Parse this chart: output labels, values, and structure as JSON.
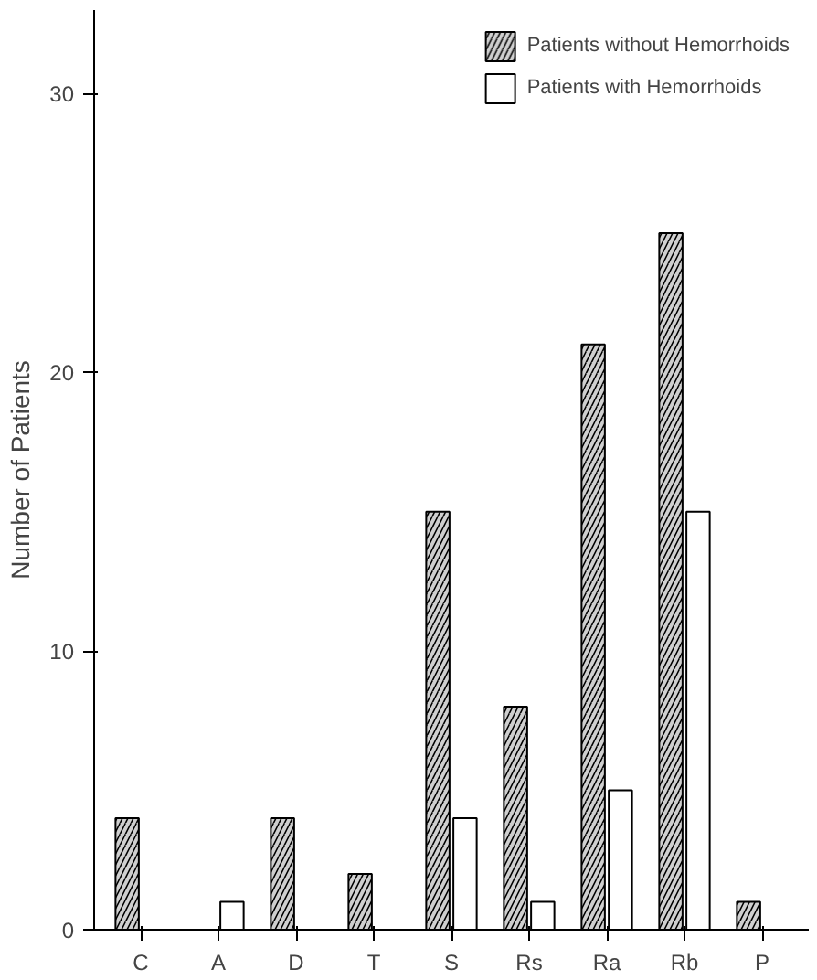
{
  "chart_data": {
    "type": "bar",
    "ylabel": "Number of Patients",
    "categories": [
      "C",
      "A",
      "D",
      "T",
      "S",
      "Rs",
      "Ra",
      "Rb",
      "P"
    ],
    "series": [
      {
        "name": "Patients without Hemorrhoids",
        "color": "#cfcfcf",
        "values": [
          4,
          0,
          4,
          2,
          15,
          8,
          21,
          25,
          1
        ]
      },
      {
        "name": "Patients with Hemorrhoids",
        "color": "#ffffff",
        "values": [
          0,
          1,
          0,
          0,
          4,
          1,
          5,
          15,
          0
        ]
      }
    ],
    "ylim": [
      0,
      33
    ],
    "yticks": [
      0,
      10,
      20,
      30
    ],
    "grid": false,
    "legend": "top right"
  }
}
